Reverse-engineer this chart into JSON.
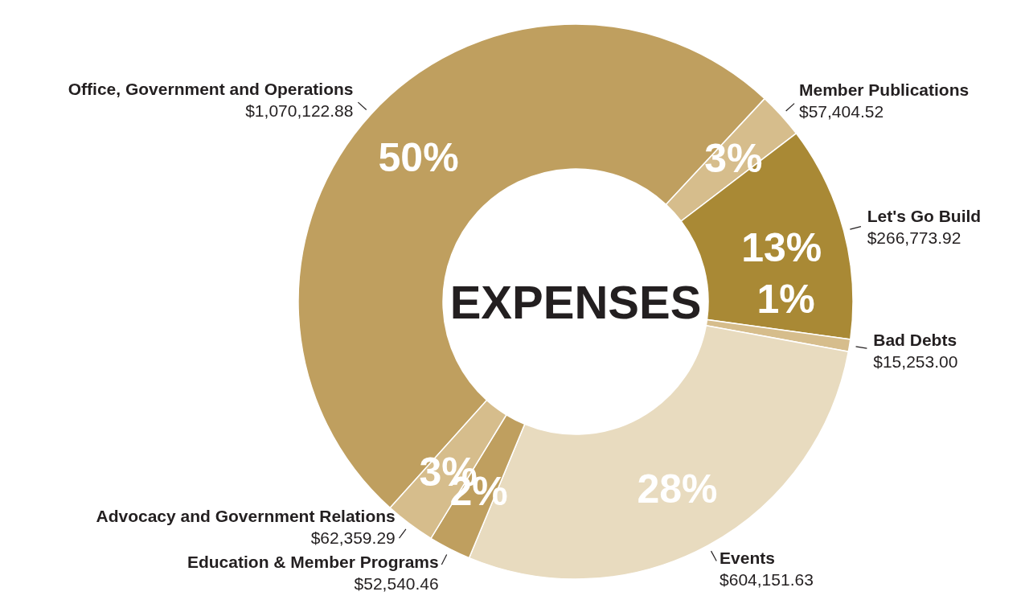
{
  "chart_data": {
    "type": "donut",
    "title": "EXPENSES",
    "categories": [
      "Office, Government and Operations",
      "Member Publications",
      "Let's Go Build",
      "Bad Debts",
      "Events",
      "Education & Member Programs",
      "Advocacy and Government Relations"
    ],
    "values": [
      1070122.88,
      57404.52,
      266773.92,
      15253.0,
      604151.63,
      52540.46,
      62359.29
    ],
    "value_labels": [
      "$1,070,122.88",
      "$57,404.52",
      "$266,773.92",
      "$15,253.00",
      "$604,151.63",
      "$52,540.46",
      "$62,359.29"
    ],
    "colors": [
      "#bf9f5f",
      "#d6bd8c",
      "#a98935",
      "#d6bd8c",
      "#e8dbbf",
      "#bf9f5f",
      "#d6bd8c"
    ],
    "annotations": [
      {
        "text": "50%",
        "x": "Office, Government and Operations"
      },
      {
        "text": "3%",
        "x": "Member Publications"
      },
      {
        "text": "13%",
        "x": "Let's Go Build"
      },
      {
        "text": "1%",
        "x": "Bad Debts"
      },
      {
        "text": "28%",
        "x": "Events"
      },
      {
        "text": "2%",
        "x": "Education & Member Programs"
      },
      {
        "text": "3%",
        "x": "Advocacy and Government Relations"
      }
    ]
  }
}
